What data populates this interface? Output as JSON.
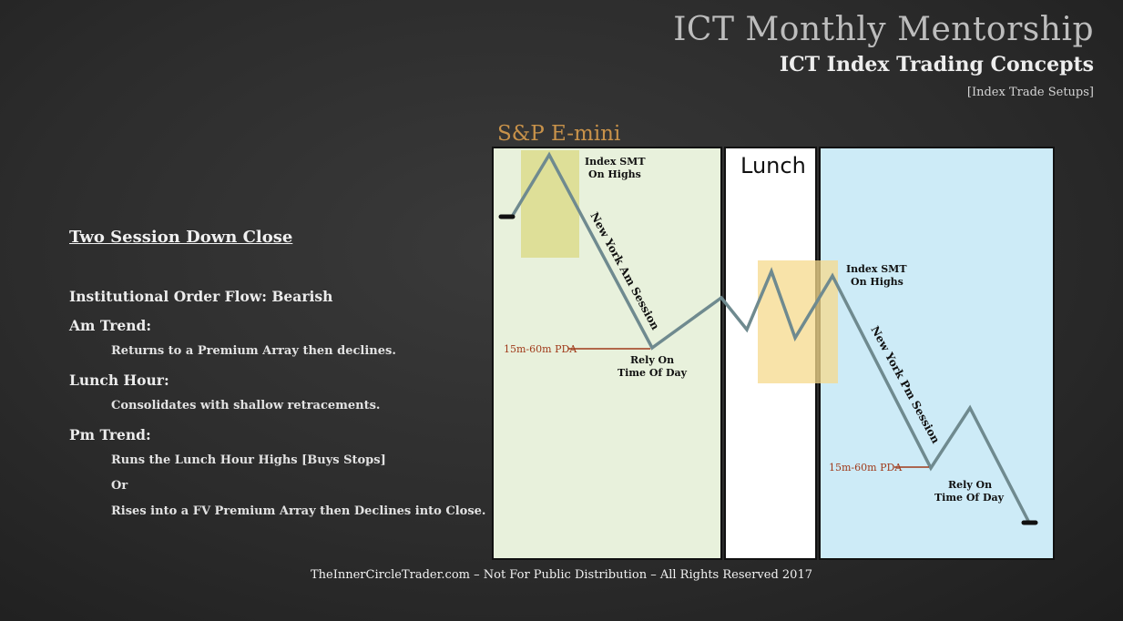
{
  "header": {
    "title": "ICT Monthly Mentorship",
    "subtitle": "ICT Index Trading Concepts",
    "tag": "[Index Trade Setups]"
  },
  "left_panel": {
    "heading": "Two Session Down Close",
    "order_flow": "Institutional Order Flow:  Bearish",
    "am_trend_label": "Am Trend:",
    "am_trend_desc": "Returns to a Premium Array then declines.",
    "lunch_label": "Lunch Hour:",
    "lunch_desc": "Consolidates with shallow retracements.",
    "pm_trend_label": "Pm Trend:",
    "pm_line1": "Runs the Lunch Hour Highs [Buys Stops]",
    "pm_or": "Or",
    "pm_line2": "Rises into a FV Premium Array then Declines into Close."
  },
  "diagram": {
    "instrument": "S&P E-mini",
    "lunch_label": "Lunch",
    "smt_am_line1": "Index SMT",
    "smt_am_line2": "On Highs",
    "ny_am_session": "New York Am Session",
    "pda_am": "15m-60m PDA",
    "rely_am_line1": "Rely On",
    "rely_am_line2": "Time Of Day",
    "smt_pm_line1": "Index SMT",
    "smt_pm_line2": "On Highs",
    "ny_pm_session": "New York Pm Session",
    "pda_pm": "15m-60m PDA",
    "rely_pm_line1": "Rely On",
    "rely_pm_line2": "Time Of Day",
    "colors": {
      "am_panel": "#e8f1dc",
      "lunch_panel": "#ffffff",
      "pm_panel": "#cdebf7",
      "am_premium_box": "#dcdc8c",
      "lunch_premium_box": "#f5d98c",
      "price_line": "#6f8a8f",
      "instrument_text": "#c8924a",
      "pda_line": "#a03a1a"
    }
  },
  "footer": "TheInnerCircleTrader.com – Not For Public Distribution – All Rights Reserved 2017"
}
